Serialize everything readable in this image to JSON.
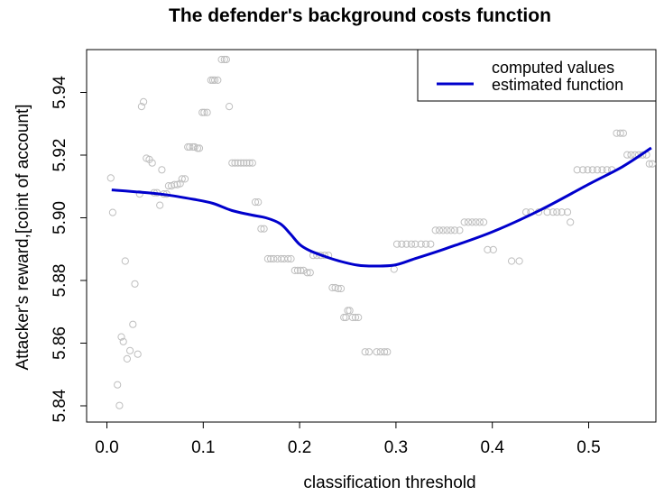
{
  "chart_data": {
    "type": "scatter",
    "title": "The defender's background costs function",
    "xlabel": "classification threshold",
    "ylabel": "Attacker's reward,[coint of account]",
    "xlim": [
      -0.01,
      0.575
    ],
    "ylim": [
      5.8375,
      5.9535
    ],
    "x_ticks": [
      0.0,
      0.1,
      0.2,
      0.3,
      0.4,
      0.5
    ],
    "x_tick_labels": [
      "0.0",
      "0.1",
      "0.2",
      "0.3",
      "0.4",
      "0.5"
    ],
    "y_ticks": [
      5.84,
      5.86,
      5.88,
      5.9,
      5.92,
      5.94
    ],
    "y_tick_labels": [
      "5.84",
      "5.86",
      "5.88",
      "5.90",
      "5.92",
      "5.94"
    ],
    "legend": {
      "position": "top-right",
      "entries": [
        "computed values",
        "estimated function"
      ]
    },
    "colors": {
      "points": "#bebebe",
      "line": "#0000cc"
    },
    "grid": false,
    "series": [
      {
        "name": "computed values",
        "kind": "scatter",
        "points": [
          [
            0.004,
            5.9127
          ],
          [
            0.006,
            5.9017
          ],
          [
            0.011,
            5.8467
          ],
          [
            0.013,
            5.8401
          ],
          [
            0.015,
            5.862
          ],
          [
            0.017,
            5.8605
          ],
          [
            0.019,
            5.8862
          ],
          [
            0.021,
            5.855
          ],
          [
            0.024,
            5.8576
          ],
          [
            0.027,
            5.866
          ],
          [
            0.029,
            5.8789
          ],
          [
            0.032,
            5.8565
          ],
          [
            0.034,
            5.9076
          ],
          [
            0.036,
            5.9355
          ],
          [
            0.038,
            5.937
          ],
          [
            0.041,
            5.919
          ],
          [
            0.044,
            5.9186
          ],
          [
            0.047,
            5.9175
          ],
          [
            0.049,
            5.908
          ],
          [
            0.052,
            5.908
          ],
          [
            0.055,
            5.904
          ],
          [
            0.057,
            5.9153
          ],
          [
            0.059,
            5.9076
          ],
          [
            0.062,
            5.9076
          ],
          [
            0.064,
            5.9102
          ],
          [
            0.067,
            5.9102
          ],
          [
            0.07,
            5.9106
          ],
          [
            0.073,
            5.9106
          ],
          [
            0.076,
            5.9109
          ],
          [
            0.078,
            5.9124
          ],
          [
            0.081,
            5.9124
          ],
          [
            0.084,
            5.9226
          ],
          [
            0.086,
            5.9226
          ],
          [
            0.089,
            5.9226
          ],
          [
            0.091,
            5.9226
          ],
          [
            0.094,
            5.9222
          ],
          [
            0.096,
            5.9222
          ],
          [
            0.099,
            5.9336
          ],
          [
            0.101,
            5.9336
          ],
          [
            0.104,
            5.9336
          ],
          [
            0.108,
            5.9439
          ],
          [
            0.11,
            5.9439
          ],
          [
            0.112,
            5.9439
          ],
          [
            0.115,
            5.9439
          ],
          [
            0.119,
            5.9505
          ],
          [
            0.122,
            5.9505
          ],
          [
            0.124,
            5.9505
          ],
          [
            0.127,
            5.9355
          ],
          [
            0.13,
            5.9175
          ],
          [
            0.133,
            5.9175
          ],
          [
            0.136,
            5.9175
          ],
          [
            0.139,
            5.9175
          ],
          [
            0.142,
            5.9175
          ],
          [
            0.145,
            5.9175
          ],
          [
            0.148,
            5.9175
          ],
          [
            0.151,
            5.9175
          ],
          [
            0.154,
            5.905
          ],
          [
            0.157,
            5.905
          ],
          [
            0.16,
            5.8965
          ],
          [
            0.163,
            5.8965
          ],
          [
            0.167,
            5.8869
          ],
          [
            0.17,
            5.8869
          ],
          [
            0.173,
            5.8869
          ],
          [
            0.177,
            5.8869
          ],
          [
            0.181,
            5.8869
          ],
          [
            0.184,
            5.8869
          ],
          [
            0.188,
            5.8869
          ],
          [
            0.191,
            5.8869
          ],
          [
            0.195,
            5.8832
          ],
          [
            0.198,
            5.8832
          ],
          [
            0.201,
            5.8832
          ],
          [
            0.204,
            5.8832
          ],
          [
            0.208,
            5.8825
          ],
          [
            0.211,
            5.8825
          ],
          [
            0.214,
            5.888
          ],
          [
            0.218,
            5.888
          ],
          [
            0.222,
            5.888
          ],
          [
            0.226,
            5.888
          ],
          [
            0.23,
            5.888
          ],
          [
            0.234,
            5.8777
          ],
          [
            0.237,
            5.8777
          ],
          [
            0.24,
            5.8774
          ],
          [
            0.243,
            5.8774
          ],
          [
            0.246,
            5.8682
          ],
          [
            0.248,
            5.8682
          ],
          [
            0.25,
            5.8704
          ],
          [
            0.252,
            5.8704
          ],
          [
            0.255,
            5.8682
          ],
          [
            0.258,
            5.8682
          ],
          [
            0.261,
            5.8682
          ],
          [
            0.268,
            5.8572
          ],
          [
            0.272,
            5.8572
          ],
          [
            0.28,
            5.8572
          ],
          [
            0.284,
            5.8572
          ],
          [
            0.288,
            5.8572
          ],
          [
            0.291,
            5.8572
          ],
          [
            0.298,
            5.8836
          ],
          [
            0.301,
            5.8916
          ],
          [
            0.306,
            5.8916
          ],
          [
            0.311,
            5.8916
          ],
          [
            0.316,
            5.8916
          ],
          [
            0.32,
            5.8916
          ],
          [
            0.326,
            5.8916
          ],
          [
            0.331,
            5.8916
          ],
          [
            0.336,
            5.8916
          ],
          [
            0.341,
            5.896
          ],
          [
            0.345,
            5.896
          ],
          [
            0.349,
            5.896
          ],
          [
            0.353,
            5.896
          ],
          [
            0.357,
            5.896
          ],
          [
            0.361,
            5.896
          ],
          [
            0.366,
            5.896
          ],
          [
            0.371,
            5.8986
          ],
          [
            0.375,
            5.8986
          ],
          [
            0.379,
            5.8986
          ],
          [
            0.383,
            5.8986
          ],
          [
            0.387,
            5.8986
          ],
          [
            0.391,
            5.8986
          ],
          [
            0.395,
            5.8898
          ],
          [
            0.401,
            5.8898
          ],
          [
            0.42,
            5.8862
          ],
          [
            0.428,
            5.8862
          ],
          [
            0.435,
            5.9018
          ],
          [
            0.44,
            5.9018
          ],
          [
            0.448,
            5.9018
          ],
          [
            0.457,
            5.9018
          ],
          [
            0.463,
            5.9018
          ],
          [
            0.467,
            5.9018
          ],
          [
            0.472,
            5.9018
          ],
          [
            0.478,
            5.9018
          ],
          [
            0.481,
            5.8986
          ],
          [
            0.488,
            5.9153
          ],
          [
            0.494,
            5.9153
          ],
          [
            0.499,
            5.9153
          ],
          [
            0.504,
            5.9153
          ],
          [
            0.509,
            5.9153
          ],
          [
            0.514,
            5.9153
          ],
          [
            0.519,
            5.9153
          ],
          [
            0.524,
            5.9153
          ],
          [
            0.529,
            5.927
          ],
          [
            0.533,
            5.927
          ],
          [
            0.536,
            5.927
          ],
          [
            0.54,
            5.9201
          ],
          [
            0.544,
            5.9201
          ],
          [
            0.548,
            5.9201
          ],
          [
            0.552,
            5.9201
          ],
          [
            0.556,
            5.9201
          ],
          [
            0.56,
            5.9201
          ],
          [
            0.563,
            5.9172
          ],
          [
            0.566,
            5.9172
          ]
        ]
      },
      {
        "name": "estimated function",
        "kind": "line",
        "x": [
          0.005,
          0.03,
          0.06,
          0.09,
          0.11,
          0.13,
          0.15,
          0.165,
          0.18,
          0.19,
          0.2,
          0.21,
          0.225,
          0.24,
          0.26,
          0.28,
          0.3,
          0.32,
          0.35,
          0.4,
          0.45,
          0.5,
          0.535,
          0.565
        ],
        "y": [
          5.9089,
          5.9083,
          5.9074,
          5.9059,
          5.9046,
          5.9023,
          5.9009,
          5.9,
          5.8981,
          5.895,
          5.8915,
          5.8896,
          5.8878,
          5.8863,
          5.8849,
          5.8846,
          5.885,
          5.887,
          5.89,
          5.8955,
          5.9025,
          5.9107,
          5.9163,
          5.9223
        ]
      }
    ]
  }
}
